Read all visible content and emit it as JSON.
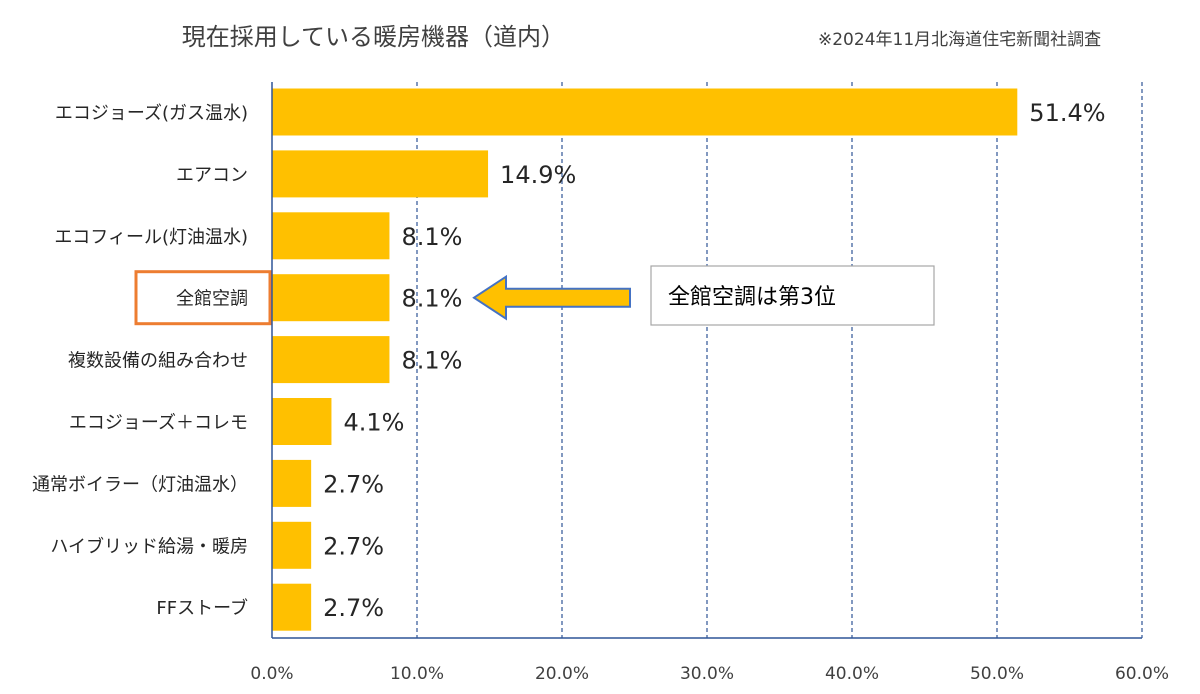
{
  "title": "現在採用している暖房機器（道内）",
  "subtitle": "※2024年11月北海道住宅新聞社調査",
  "colors": {
    "bar": "#FFC000",
    "grid": "#2F5597",
    "axis": "#2F5597",
    "highlight_box": "#ED7D31",
    "arrow_fill": "#FFC000",
    "arrow_stroke": "#4472C4"
  },
  "chart_data": {
    "type": "bar",
    "orientation": "horizontal",
    "categories": [
      "エコジョーズ(ガス温水)",
      "エアコン",
      "エコフィール(灯油温水)",
      "全館空調",
      "複数設備の組み合わせ",
      "エコジョーズ＋コレモ",
      "通常ボイラー（灯油温水）",
      "ハイブリッド給湯・暖房",
      "FFストーブ"
    ],
    "values": [
      51.4,
      14.9,
      8.1,
      8.1,
      8.1,
      4.1,
      2.7,
      2.7,
      2.7
    ],
    "value_labels": [
      "51.4%",
      "14.9%",
      "8.1%",
      "8.1%",
      "8.1%",
      "4.1%",
      "2.7%",
      "2.7%",
      "2.7%"
    ],
    "xlim": [
      0,
      60
    ],
    "xticks": [
      0,
      10,
      20,
      30,
      40,
      50,
      60
    ],
    "xtick_labels": [
      "0.0%",
      "10.0%",
      "20.0%",
      "30.0%",
      "40.0%",
      "50.0%",
      "60.0%"
    ],
    "grid": "vertical dashed",
    "highlight_category": "全館空調",
    "annotation": {
      "text": "全館空調は第3位",
      "points_to": "全館空調"
    }
  }
}
